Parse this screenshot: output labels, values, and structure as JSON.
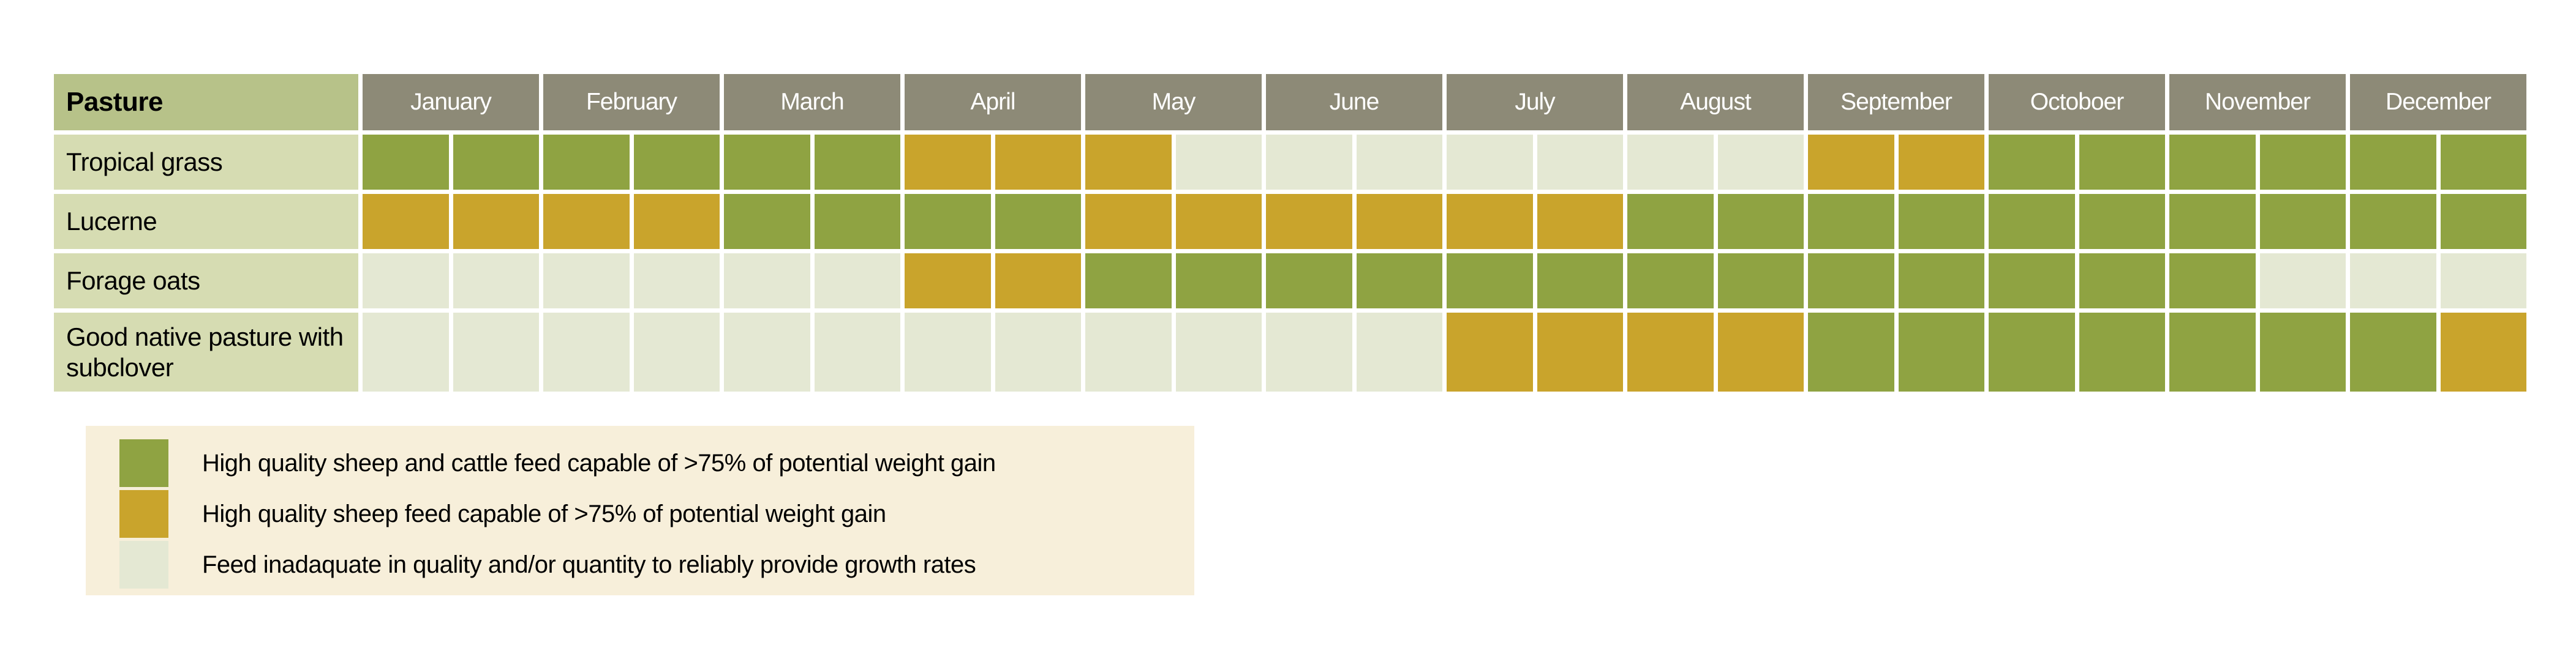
{
  "chart_data": {
    "type": "heatmap",
    "corner_label": "Pasture",
    "months": [
      "January",
      "February",
      "March",
      "April",
      "May",
      "June",
      "July",
      "August",
      "September",
      "Octoboer",
      "November",
      "December"
    ],
    "cells_per_month": 2,
    "status_codes": {
      "G": "High quality sheep and cattle feed",
      "Y": "High quality sheep feed",
      "L": "Feed inadequate"
    },
    "palette": {
      "G": "#8fa342",
      "Y": "#c9a42c",
      "L": "#e4e8d3"
    },
    "rows": [
      {
        "label": "Tropical grass",
        "cells": [
          "G",
          "G",
          "G",
          "G",
          "G",
          "G",
          "Y",
          "Y",
          "Y",
          "L",
          "L",
          "L",
          "L",
          "L",
          "L",
          "L",
          "Y",
          "Y",
          "G",
          "G",
          "G",
          "G",
          "G",
          "G"
        ]
      },
      {
        "label": "Lucerne",
        "cells": [
          "Y",
          "Y",
          "Y",
          "Y",
          "G",
          "G",
          "G",
          "G",
          "Y",
          "Y",
          "Y",
          "Y",
          "Y",
          "Y",
          "G",
          "G",
          "G",
          "G",
          "G",
          "G",
          "G",
          "G",
          "G",
          "G"
        ]
      },
      {
        "label": "Forage oats",
        "cells": [
          "L",
          "L",
          "L",
          "L",
          "L",
          "L",
          "Y",
          "Y",
          "G",
          "G",
          "G",
          "G",
          "G",
          "G",
          "G",
          "G",
          "G",
          "G",
          "G",
          "G",
          "G",
          "L",
          "L",
          "L"
        ]
      },
      {
        "label": "Good native pasture with subclover",
        "cells": [
          "L",
          "L",
          "L",
          "L",
          "L",
          "L",
          "L",
          "L",
          "L",
          "L",
          "L",
          "L",
          "Y",
          "Y",
          "Y",
          "Y",
          "G",
          "G",
          "G",
          "G",
          "G",
          "G",
          "G",
          "Y"
        ]
      }
    ],
    "legend": [
      {
        "code": "G",
        "color": "#8fa342",
        "label": "High quality sheep and cattle feed capable of >75% of potential weight gain"
      },
      {
        "code": "Y",
        "color": "#c9a42c",
        "label": "High quality sheep feed capable of >75% of potential weight gain"
      },
      {
        "code": "L",
        "color": "#e4e8d3",
        "label": "Feed inadaquate in quality and/or quantity to reliably provide growth rates"
      }
    ],
    "layout": {
      "legend_position": "bottom-left",
      "grid_gap_color": "#ffffff"
    },
    "colors": {
      "header_bg": "#8d8a77",
      "corner_bg": "#b7c289",
      "rowlabel_bg": "#d6dcb2",
      "legend_bg": "#f7efda",
      "month_text": "#ffffff",
      "label_text": "#000000"
    }
  }
}
